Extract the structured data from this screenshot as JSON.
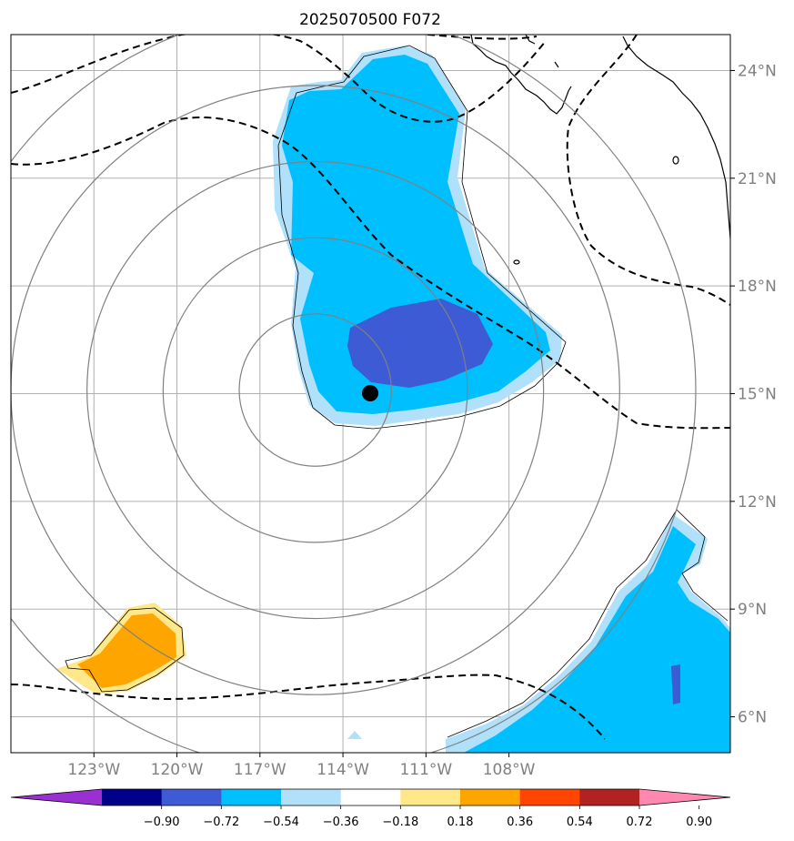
{
  "title": "2025070500 F072",
  "map": {
    "lon_range": [
      -126,
      -100
    ],
    "lat_range": [
      5,
      25
    ],
    "grid": true,
    "x_ticks": [
      {
        "value": -123,
        "label": "123°W"
      },
      {
        "value": -120,
        "label": "120°W"
      },
      {
        "value": -117,
        "label": "117°W"
      },
      {
        "value": -114,
        "label": "114°W"
      },
      {
        "value": -111,
        "label": "111°W"
      },
      {
        "value": -108,
        "label": "108°W"
      }
    ],
    "y_ticks": [
      {
        "value": 24,
        "label": "24°N"
      },
      {
        "value": 21,
        "label": "21°N"
      },
      {
        "value": 18,
        "label": "18°N"
      },
      {
        "value": 15,
        "label": "15°N"
      },
      {
        "value": 12,
        "label": "12°N"
      },
      {
        "value": 9,
        "label": "9°N"
      },
      {
        "value": 6,
        "label": "6°N"
      }
    ],
    "storm_center": {
      "lon": -115.0,
      "lat": 15.1
    },
    "range_ring_radii_deg": [
      2.75,
      5.5,
      8.25,
      11.0,
      13.75
    ],
    "colors": {
      "lt_blue": "#b0e0fa",
      "blue": "#00bfff",
      "royal": "#3d5bd4",
      "yellow": "#ffe88a",
      "orange": "#ffa500",
      "ring": "#808080",
      "grid": "#b0b0b0"
    }
  },
  "colorbar": {
    "levels": [
      "−0.90",
      "−0.72",
      "−0.54",
      "−0.36",
      "−0.18",
      "0.18",
      "0.36",
      "0.54",
      "0.72",
      "0.90"
    ],
    "colors": [
      "#9b30d0",
      "#00008b",
      "#3d5bd4",
      "#00bfff",
      "#b0e0fa",
      "#ffffff",
      "#ffe88a",
      "#ffa500",
      "#ff4500",
      "#b22222",
      "#ff88b0"
    ]
  }
}
